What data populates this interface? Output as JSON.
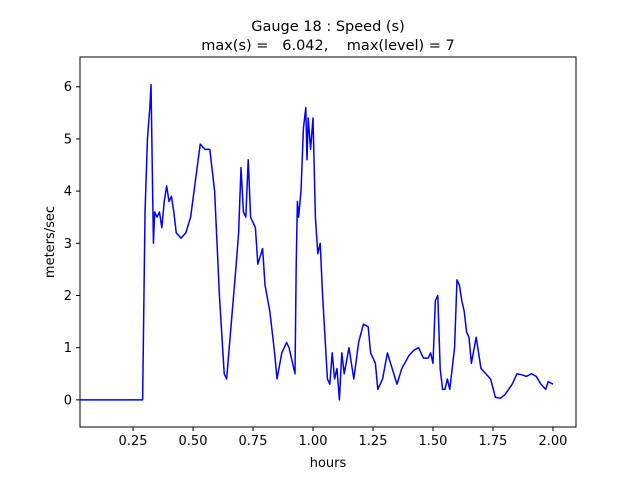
{
  "chart_data": {
    "type": "line",
    "title": "Gauge 18 : Speed (s)",
    "subtitle": "max(s) =   6.042,    max(level) = 7",
    "xlabel": "hours",
    "ylabel": "meters/sec",
    "xlim": [
      0.029,
      2.096
    ],
    "ylim": [
      -0.52,
      6.57
    ],
    "xticks": [
      0.25,
      {
        "value": 0.5,
        "label": "0.50"
      },
      0.75,
      {
        "value": 1.0,
        "label": "1.00"
      },
      1.25,
      {
        "value": 1.5,
        "label": "1.50"
      },
      1.75,
      {
        "value": 2.0,
        "label": "2.00"
      }
    ],
    "yticks": [
      0,
      1,
      2,
      3,
      4,
      5,
      6
    ],
    "grid": false,
    "series": [
      {
        "color": "#0000ff",
        "x": [
          0.03,
          0.29,
          0.3,
          0.31,
          0.32,
          0.325,
          0.33,
          0.335,
          0.34,
          0.35,
          0.36,
          0.37,
          0.38,
          0.39,
          0.4,
          0.41,
          0.42,
          0.43,
          0.45,
          0.47,
          0.49,
          0.51,
          0.53,
          0.55,
          0.57,
          0.59,
          0.61,
          0.63,
          0.64,
          0.66,
          0.68,
          0.69,
          0.7,
          0.71,
          0.72,
          0.73,
          0.74,
          0.76,
          0.77,
          0.79,
          0.8,
          0.82,
          0.84,
          0.85,
          0.87,
          0.89,
          0.9,
          0.91,
          0.925,
          0.93,
          0.935,
          0.94,
          0.95,
          0.96,
          0.97,
          0.975,
          0.98,
          0.99,
          1.0,
          1.01,
          1.02,
          1.03,
          1.04,
          1.05,
          1.06,
          1.07,
          1.08,
          1.09,
          1.1,
          1.11,
          1.12,
          1.13,
          1.15,
          1.17,
          1.19,
          1.21,
          1.23,
          1.24,
          1.26,
          1.27,
          1.28,
          1.29,
          1.31,
          1.33,
          1.35,
          1.37,
          1.4,
          1.42,
          1.44,
          1.46,
          1.48,
          1.49,
          1.5,
          1.51,
          1.52,
          1.53,
          1.54,
          1.55,
          1.56,
          1.57,
          1.59,
          1.6,
          1.61,
          1.62,
          1.63,
          1.64,
          1.65,
          1.66,
          1.68,
          1.7,
          1.72,
          1.74,
          1.76,
          1.78,
          1.8,
          1.83,
          1.85,
          1.87,
          1.89,
          1.91,
          1.93,
          1.95,
          1.97,
          1.98,
          2.0
        ],
        "values": [
          0,
          0,
          3.6,
          5.0,
          5.6,
          6.04,
          4.5,
          3.0,
          3.6,
          3.5,
          3.6,
          3.3,
          3.8,
          4.1,
          3.8,
          3.9,
          3.6,
          3.2,
          3.1,
          3.2,
          3.5,
          4.2,
          4.9,
          4.8,
          4.8,
          4.0,
          2.0,
          0.5,
          0.4,
          1.5,
          2.6,
          3.2,
          4.45,
          3.6,
          3.5,
          4.6,
          3.5,
          3.3,
          2.6,
          2.9,
          2.2,
          1.7,
          0.9,
          0.4,
          0.9,
          1.1,
          1.0,
          0.8,
          0.5,
          2.6,
          3.8,
          3.5,
          4.0,
          5.2,
          5.6,
          4.6,
          5.4,
          4.8,
          5.4,
          3.5,
          2.8,
          3.0,
          2.0,
          1.2,
          0.4,
          0.3,
          0.9,
          0.4,
          0.6,
          0.0,
          0.9,
          0.5,
          1.0,
          0.4,
          1.1,
          1.45,
          1.4,
          0.9,
          0.7,
          0.2,
          0.3,
          0.4,
          0.9,
          0.6,
          0.3,
          0.6,
          0.85,
          0.95,
          1.0,
          0.8,
          0.8,
          0.9,
          0.7,
          1.9,
          2.0,
          0.6,
          0.2,
          0.2,
          0.4,
          0.2,
          1.0,
          2.3,
          2.2,
          1.9,
          1.7,
          1.3,
          1.2,
          0.7,
          1.2,
          0.6,
          0.5,
          0.4,
          0.05,
          0.03,
          0.1,
          0.3,
          0.5,
          0.48,
          0.45,
          0.5,
          0.45,
          0.3,
          0.2,
          0.35,
          0.3
        ]
      }
    ]
  }
}
